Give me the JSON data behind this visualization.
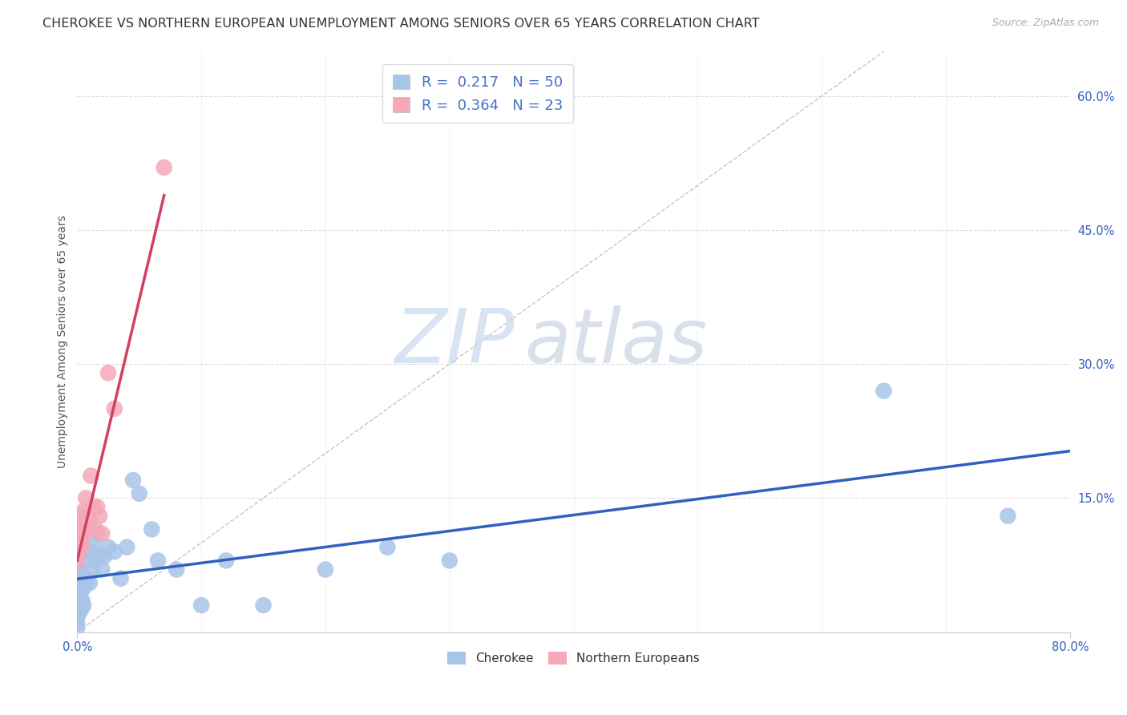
{
  "title": "CHEROKEE VS NORTHERN EUROPEAN UNEMPLOYMENT AMONG SENIORS OVER 65 YEARS CORRELATION CHART",
  "source": "Source: ZipAtlas.com",
  "ylabel": "Unemployment Among Seniors over 65 years",
  "xlim": [
    0.0,
    0.8
  ],
  "ylim": [
    0.0,
    0.65
  ],
  "yticks": [
    0.0,
    0.15,
    0.3,
    0.45,
    0.6
  ],
  "watermark_zip": "ZIP",
  "watermark_atlas": "atlas",
  "cherokee_R": 0.217,
  "cherokee_N": 50,
  "northern_R": 0.364,
  "northern_N": 23,
  "cherokee_color": "#a8c4e8",
  "northern_color": "#f4a8b8",
  "cherokee_line_color": "#3060c0",
  "northern_line_color": "#d04060",
  "legend_color": "#4472c4",
  "cherokee_x": [
    0.0,
    0.0,
    0.0,
    0.0,
    0.0,
    0.0,
    0.0,
    0.001,
    0.001,
    0.002,
    0.002,
    0.002,
    0.003,
    0.003,
    0.003,
    0.004,
    0.004,
    0.005,
    0.005,
    0.005,
    0.006,
    0.007,
    0.008,
    0.008,
    0.01,
    0.01,
    0.012,
    0.013,
    0.015,
    0.016,
    0.018,
    0.02,
    0.022,
    0.025,
    0.03,
    0.035,
    0.04,
    0.045,
    0.05,
    0.06,
    0.065,
    0.08,
    0.1,
    0.12,
    0.15,
    0.2,
    0.25,
    0.3,
    0.65,
    0.75
  ],
  "cherokee_y": [
    0.005,
    0.01,
    0.02,
    0.03,
    0.04,
    0.05,
    0.06,
    0.02,
    0.04,
    0.03,
    0.05,
    0.07,
    0.025,
    0.045,
    0.065,
    0.035,
    0.055,
    0.03,
    0.05,
    0.08,
    0.06,
    0.055,
    0.06,
    0.09,
    0.055,
    0.09,
    0.07,
    0.1,
    0.08,
    0.11,
    0.085,
    0.07,
    0.085,
    0.095,
    0.09,
    0.06,
    0.095,
    0.17,
    0.155,
    0.115,
    0.08,
    0.07,
    0.03,
    0.08,
    0.03,
    0.07,
    0.095,
    0.08,
    0.27,
    0.13
  ],
  "northern_x": [
    0.0,
    0.0,
    0.001,
    0.002,
    0.003,
    0.003,
    0.004,
    0.004,
    0.005,
    0.005,
    0.006,
    0.007,
    0.008,
    0.01,
    0.011,
    0.013,
    0.015,
    0.016,
    0.018,
    0.02,
    0.025,
    0.03,
    0.07
  ],
  "northern_y": [
    0.08,
    0.1,
    0.09,
    0.12,
    0.095,
    0.13,
    0.1,
    0.115,
    0.11,
    0.135,
    0.12,
    0.15,
    0.115,
    0.125,
    0.175,
    0.14,
    0.115,
    0.14,
    0.13,
    0.11,
    0.29,
    0.25,
    0.52
  ],
  "background_color": "#ffffff",
  "grid_color": "#dddddd",
  "title_fontsize": 11.5,
  "axis_label_fontsize": 10,
  "tick_fontsize": 10.5
}
